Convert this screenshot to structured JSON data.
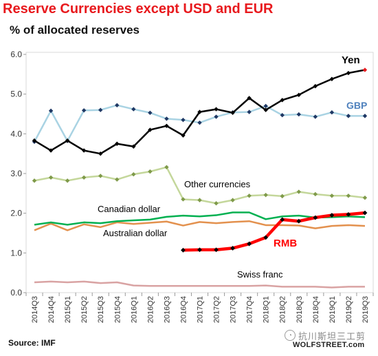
{
  "header": {
    "title": "Reserve Currencies  except USD and  EUR",
    "subtitle": "% of allocated reserves"
  },
  "footer": {
    "source": "Source: IMF",
    "brand": "WOLFSTREET.com",
    "watermark_text": "抗川斯坦三工剪"
  },
  "chart_data": {
    "type": "line",
    "title": "Reserve Currencies  except USD and  EUR",
    "subtitle": "% of allocated reserves",
    "xlabel": "",
    "ylabel": "",
    "ylim": [
      0.0,
      6.0
    ],
    "yticks": [
      "0.0",
      "1.0",
      "2.0",
      "3.0",
      "4.0",
      "5.0",
      "6.0"
    ],
    "grid": false,
    "categories": [
      "2014Q3",
      "2014Q4",
      "2015Q1",
      "2015Q2",
      "2015Q3",
      "2015Q4",
      "2016Q1",
      "2016Q2",
      "2016Q3",
      "2016Q4",
      "2017Q1",
      "2017Q2",
      "2017Q3",
      "2017Q4",
      "2018Q1",
      "2018Q2",
      "2018Q3",
      "2018Q4",
      "2019Q1",
      "2019Q2",
      "2019Q3"
    ],
    "series": [
      {
        "name": "Yen",
        "color": "#000000",
        "marker": "diamond",
        "width": 2.5,
        "values": [
          3.83,
          3.58,
          3.83,
          3.58,
          3.5,
          3.75,
          3.68,
          4.1,
          4.2,
          3.96,
          4.55,
          4.62,
          4.53,
          4.9,
          4.6,
          4.85,
          4.98,
          5.2,
          5.38,
          5.53,
          5.61
        ]
      },
      {
        "name": "GBP",
        "color": "#a9d3e3",
        "marker": "diamond",
        "width": 2.5,
        "values": [
          3.8,
          4.58,
          3.82,
          4.59,
          4.6,
          4.72,
          4.62,
          4.53,
          4.38,
          4.35,
          4.28,
          4.43,
          4.54,
          4.55,
          4.7,
          4.47,
          4.49,
          4.43,
          4.54,
          4.45,
          4.45
        ]
      },
      {
        "name": "Other currencies",
        "color": "#c4d79b",
        "marker": "diamond",
        "width": 2.5,
        "values": [
          2.82,
          2.9,
          2.82,
          2.9,
          2.94,
          2.85,
          2.98,
          3.05,
          3.16,
          2.35,
          2.33,
          2.25,
          2.33,
          2.44,
          2.46,
          2.43,
          2.54,
          2.48,
          2.44,
          2.44,
          2.39
        ]
      },
      {
        "name": "Canadian dollar",
        "color": "#00b050",
        "marker": "none",
        "width": 2.5,
        "values": [
          1.71,
          1.77,
          1.71,
          1.77,
          1.75,
          1.8,
          1.82,
          1.84,
          1.91,
          1.94,
          1.92,
          1.95,
          2.02,
          2.02,
          1.85,
          1.92,
          1.94,
          1.89,
          1.9,
          1.92,
          1.9
        ]
      },
      {
        "name": "Australian dollar",
        "color": "#e3914e",
        "marker": "none",
        "width": 2.5,
        "values": [
          1.57,
          1.74,
          1.57,
          1.72,
          1.65,
          1.77,
          1.73,
          1.76,
          1.79,
          1.69,
          1.78,
          1.75,
          1.78,
          1.8,
          1.7,
          1.7,
          1.69,
          1.62,
          1.68,
          1.7,
          1.68
        ]
      },
      {
        "name": "RMB",
        "color": "#ff0000",
        "marker": "diamond",
        "width": 4.5,
        "start_index": 9,
        "values": [
          null,
          null,
          null,
          null,
          null,
          null,
          null,
          null,
          null,
          1.07,
          1.08,
          1.08,
          1.12,
          1.23,
          1.39,
          1.84,
          1.8,
          1.89,
          1.95,
          1.97,
          2.01
        ]
      },
      {
        "name": "Swiss franc",
        "color": "#d9a3a3",
        "marker": "none",
        "width": 2.5,
        "values": [
          0.26,
          0.28,
          0.26,
          0.28,
          0.24,
          0.26,
          0.18,
          0.17,
          0.17,
          0.17,
          0.17,
          0.17,
          0.17,
          0.17,
          0.18,
          0.15,
          0.15,
          0.15,
          0.13,
          0.15,
          0.15
        ]
      }
    ],
    "labels": [
      {
        "text": "Yen",
        "color": "#000000",
        "bold": true,
        "size": 15
      },
      {
        "text": "GBP",
        "color": "#4f81bd",
        "bold": true,
        "size": 14
      },
      {
        "text": "Other currencies",
        "color": "#000000",
        "bold": false,
        "size": 13
      },
      {
        "text": "Canadian dollar",
        "color": "#000000",
        "bold": false,
        "size": 13
      },
      {
        "text": "Australian dollar",
        "color": "#000000",
        "bold": false,
        "size": 13
      },
      {
        "text": "RMB",
        "color": "#ff0000",
        "bold": true,
        "size": 15
      },
      {
        "text": "Swiss franc",
        "color": "#000000",
        "bold": false,
        "size": 13
      }
    ]
  }
}
